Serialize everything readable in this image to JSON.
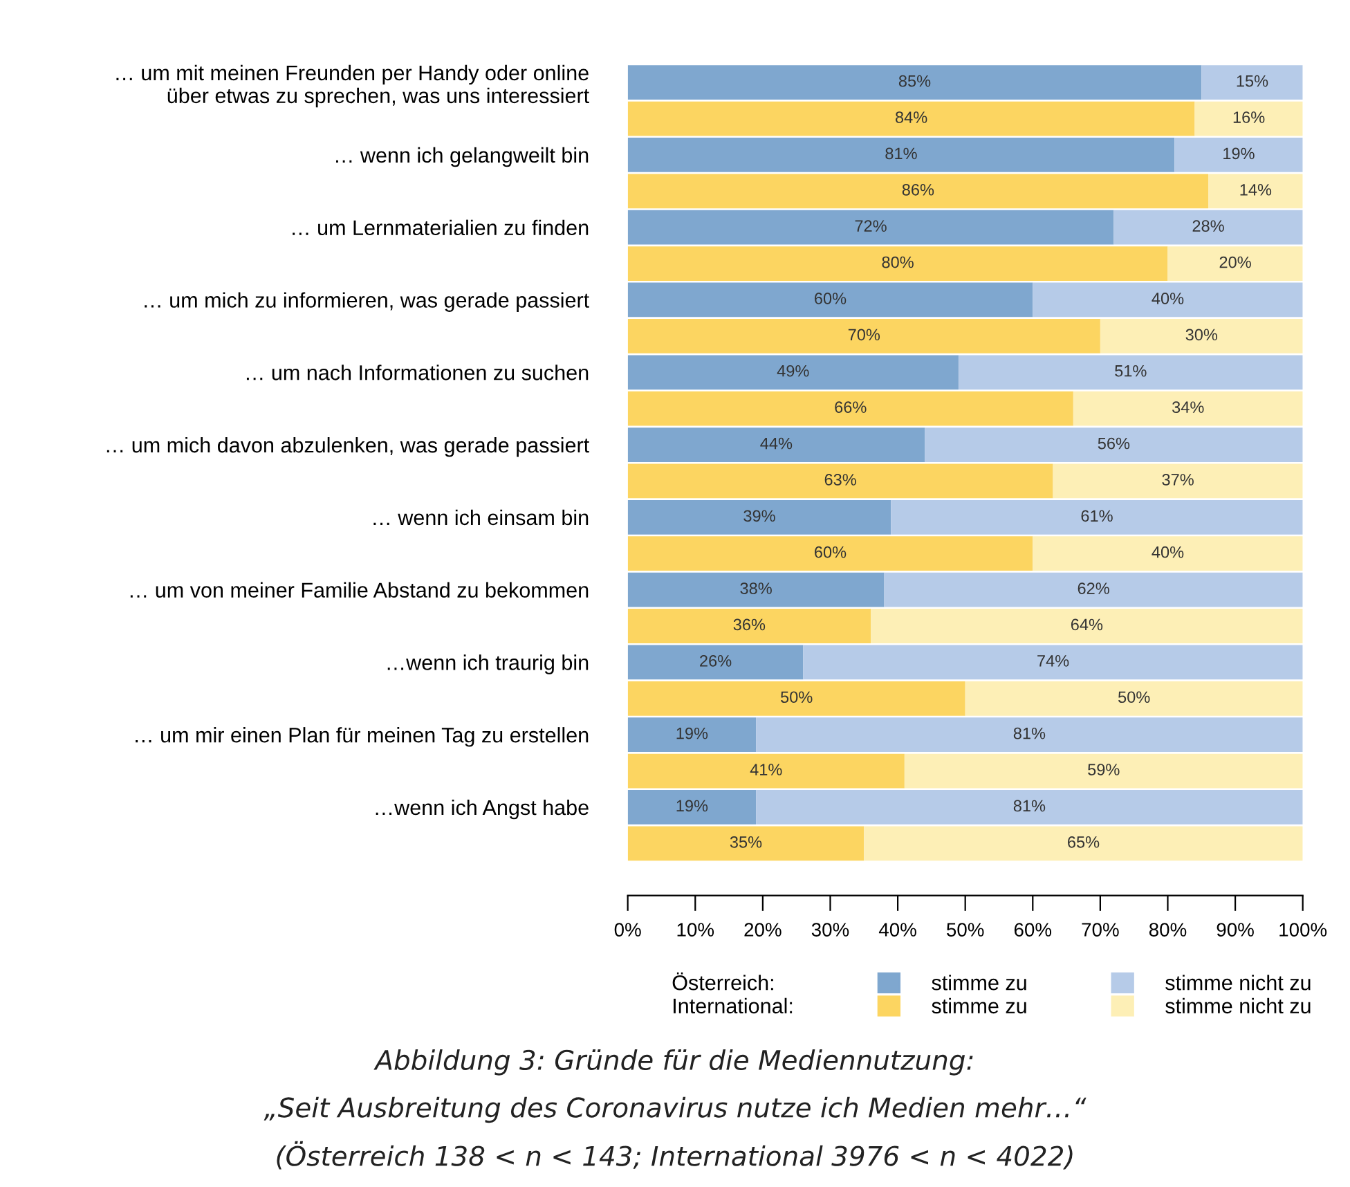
{
  "chart_data": {
    "type": "bar",
    "orientation": "horizontal",
    "stacked": true,
    "categories": [
      "… um mit meinen Freunden per Handy oder online\nüber etwas zu sprechen, was uns interessiert",
      null,
      "… wenn ich gelangweilt bin",
      null,
      "… um Lernmaterialien zu finden",
      null,
      "… um mich zu informieren, was gerade passiert",
      null,
      "… um nach Informationen zu suchen",
      null,
      "… um mich davon abzulenken, was gerade passiert",
      null,
      "… wenn ich einsam bin",
      null,
      "… um von meiner Familie Abstand zu bekommen",
      null,
      "…wenn ich traurig bin",
      null,
      "… um mir einen Plan für meinen Tag zu erstellen",
      null,
      "…wenn ich Angst habe",
      null
    ],
    "series": [
      {
        "name": "stimme zu",
        "color": "#7fa7cf",
        "values": [
          85,
          null,
          81,
          null,
          72,
          null,
          60,
          null,
          49,
          null,
          44,
          null,
          39,
          null,
          38,
          null,
          26,
          null,
          19,
          null,
          19,
          null
        ],
        "value_labels": [
          "85%",
          null,
          "81%",
          null,
          "72%",
          null,
          "60%",
          null,
          "49%",
          null,
          "44%",
          null,
          "39%",
          null,
          "38%",
          null,
          "26%",
          null,
          "19%",
          null,
          "19%",
          null
        ]
      },
      {
        "name": "stimme nicht zu",
        "color": "#b6cbe8",
        "values": [
          15,
          null,
          19,
          null,
          28,
          null,
          40,
          null,
          51,
          null,
          56,
          null,
          61,
          null,
          62,
          null,
          74,
          null,
          81,
          null,
          81,
          null
        ],
        "value_labels": [
          "15%",
          null,
          "19%",
          null,
          "28%",
          null,
          "40%",
          null,
          "51%",
          null,
          "56%",
          null,
          "61%",
          null,
          "62%",
          null,
          "74%",
          null,
          "81%",
          null,
          "81%",
          null
        ]
      },
      {
        "name": "stimme zu",
        "color": "#fcd561",
        "values": [
          null,
          84,
          null,
          86,
          null,
          80,
          null,
          70,
          null,
          66,
          null,
          63,
          null,
          60,
          null,
          36,
          null,
          50,
          null,
          41,
          null,
          35
        ],
        "value_labels": [
          null,
          "84%",
          null,
          "86%",
          null,
          "80%",
          null,
          "70%",
          null,
          "66%",
          null,
          "63%",
          null,
          "60%",
          null,
          "36%",
          null,
          "50%",
          null,
          "41%",
          null,
          "35%"
        ]
      },
      {
        "name": "stimme nicht zu",
        "color": "#fdefb6",
        "values": [
          null,
          16,
          null,
          14,
          null,
          20,
          null,
          30,
          null,
          34,
          null,
          37,
          null,
          40,
          null,
          64,
          null,
          50,
          null,
          59,
          null,
          65
        ],
        "value_labels": [
          null,
          "16%",
          null,
          "14%",
          null,
          "20%",
          null,
          "30%",
          null,
          "34%",
          null,
          "37%",
          null,
          "40%",
          null,
          "64%",
          null,
          "50%",
          null,
          "59%",
          null,
          "65%"
        ]
      }
    ],
    "xlim": [
      0,
      100
    ],
    "xticks": [
      {
        "value": 0,
        "label": "0%"
      },
      {
        "value": 10,
        "label": "10%"
      },
      {
        "value": 20,
        "label": "20%"
      },
      {
        "value": 30,
        "label": "30%"
      },
      {
        "value": 40,
        "label": "40%"
      },
      {
        "value": 50,
        "label": "50%"
      },
      {
        "value": 60,
        "label": "60%"
      },
      {
        "value": 70,
        "label": "70%"
      },
      {
        "value": 80,
        "label": "80%"
      },
      {
        "value": 90,
        "label": "90%"
      },
      {
        "value": 100,
        "label": "100%"
      }
    ],
    "grid": false,
    "legend": "bottom",
    "annotations": [
      "Österreich:",
      "International:",
      "Abbildung 3: Gründe für die Mediennutzung:",
      "„Seit Ausbreitung des Coronavirus nutze ich Medien mehr…“",
      "(Österreich 138 < n < 143; International 3976 < n < 4022)"
    ]
  }
}
